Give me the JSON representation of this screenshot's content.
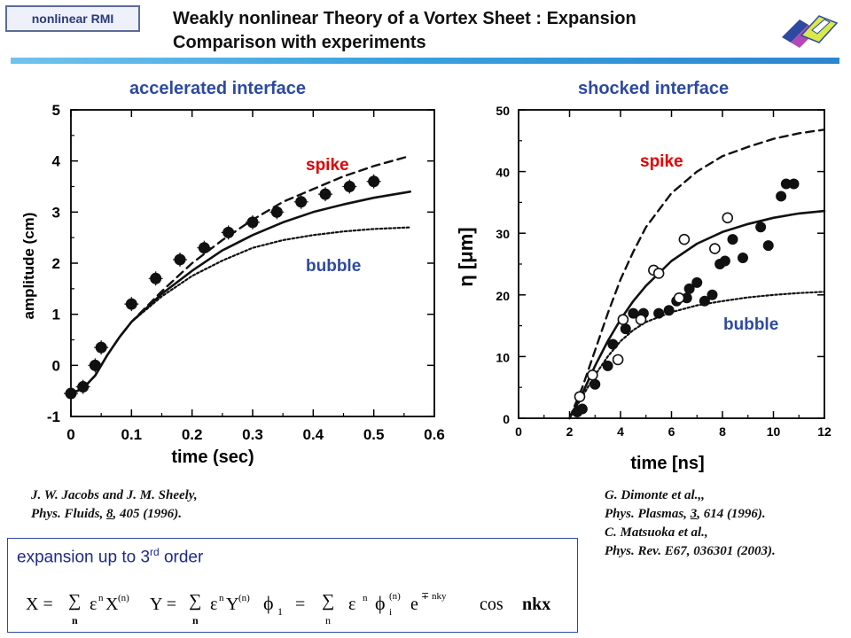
{
  "header": {
    "tag": "nonlinear RMI",
    "title_line1": "Weakly nonlinear Theory of a Vortex Sheet : Expansion",
    "title_line2": "Comparison with experiments"
  },
  "colors": {
    "accent_blue": "#2d4aa0",
    "red_label": "#e00000",
    "rule_start": "#6fc3ee",
    "rule_end": "#2b86d0"
  },
  "icons": [
    "logo-icon"
  ],
  "left_panel": {
    "title": "accelerated interface",
    "ref_line1": "J. W. Jacobs and J. M. Sheely,",
    "ref_line2_prefix": "Phys. Fluids, ",
    "ref_line2_volume": "8",
    "ref_line2_suffix": ", 405 (1996)."
  },
  "right_panel": {
    "title": "shocked interface",
    "ref_line1": "G. Dimonte et al.,,",
    "ref_line2_prefix": "Phys. Plasmas, ",
    "ref_line2_volume": "3",
    "ref_line2_suffix": ", 614 (1996).",
    "ref_line3": "C. Matsuoka et al.,",
    "ref_line4": "Phys. Rev. E67, 036301 (2003)."
  },
  "expansion": {
    "title": "expansion up to 3",
    "title_sup": "rd",
    "title_suffix": " order"
  },
  "chart_data": [
    {
      "type": "scatter",
      "xlabel": "time (sec)",
      "ylabel": "amplitude (cm)",
      "xlim": [
        0,
        0.6
      ],
      "ylim": [
        -1,
        5
      ],
      "xticks": [
        0,
        0.1,
        0.2,
        0.3,
        0.4,
        0.5,
        0.6
      ],
      "xtick_labels": [
        "0",
        "0.1",
        "0.2",
        "0.3",
        "0.4",
        "0.5",
        "0.6"
      ],
      "yticks": [
        -1,
        0,
        1,
        2,
        3,
        4,
        5
      ],
      "ytick_labels": [
        "-1",
        "0",
        "1",
        "2",
        "3",
        "4",
        "5"
      ],
      "annotations": [
        "spike",
        "bubble"
      ],
      "series": [
        {
          "name": "experiment",
          "marker": "filled-circle",
          "x": [
            0.0,
            0.02,
            0.04,
            0.05,
            0.1,
            0.14,
            0.18,
            0.22,
            0.26,
            0.3,
            0.34,
            0.38,
            0.42,
            0.46,
            0.5
          ],
          "y": [
            -0.55,
            -0.42,
            0.0,
            0.35,
            1.2,
            1.7,
            2.07,
            2.3,
            2.6,
            2.8,
            3.0,
            3.2,
            3.35,
            3.5,
            3.6
          ]
        },
        {
          "style": "dashed",
          "x": [
            0.0,
            0.02,
            0.04,
            0.06,
            0.08,
            0.1,
            0.15,
            0.2,
            0.25,
            0.3,
            0.35,
            0.4,
            0.45,
            0.5,
            0.56
          ],
          "y": [
            -0.55,
            -0.45,
            -0.2,
            0.2,
            0.55,
            0.85,
            1.45,
            2.0,
            2.45,
            2.85,
            3.2,
            3.45,
            3.7,
            3.9,
            4.1
          ]
        },
        {
          "style": "solid",
          "x": [
            0.0,
            0.02,
            0.04,
            0.06,
            0.08,
            0.1,
            0.15,
            0.2,
            0.25,
            0.3,
            0.35,
            0.4,
            0.45,
            0.5,
            0.56
          ],
          "y": [
            -0.55,
            -0.45,
            -0.2,
            0.2,
            0.55,
            0.85,
            1.4,
            1.85,
            2.25,
            2.55,
            2.8,
            3.0,
            3.15,
            3.28,
            3.4
          ]
        },
        {
          "style": "dotted",
          "x": [
            0.0,
            0.02,
            0.04,
            0.06,
            0.08,
            0.1,
            0.15,
            0.2,
            0.25,
            0.3,
            0.35,
            0.4,
            0.45,
            0.5,
            0.56
          ],
          "y": [
            -0.55,
            -0.45,
            -0.2,
            0.2,
            0.55,
            0.85,
            1.35,
            1.75,
            2.05,
            2.3,
            2.45,
            2.55,
            2.62,
            2.67,
            2.7
          ]
        }
      ]
    },
    {
      "type": "scatter",
      "xlabel": "time [ns]",
      "ylabel": "η [μm]",
      "xlim": [
        0,
        12
      ],
      "ylim": [
        0,
        50
      ],
      "xticks": [
        0,
        2,
        4,
        6,
        8,
        10,
        12
      ],
      "xtick_labels": [
        "0",
        "2",
        "4",
        "6",
        "8",
        "10",
        "12"
      ],
      "yticks": [
        0,
        10,
        20,
        30,
        40,
        50
      ],
      "ytick_labels": [
        "0",
        "10",
        "20",
        "30",
        "40",
        "50"
      ],
      "annotations": [
        "spike",
        "bubble"
      ],
      "series": [
        {
          "name": "filled",
          "marker": "filled-circle",
          "x": [
            2.3,
            2.5,
            3.0,
            3.5,
            3.7,
            4.2,
            4.5,
            4.9,
            5.5,
            5.9,
            6.2,
            6.6,
            6.7,
            7.0,
            7.3,
            7.6,
            7.9,
            8.1,
            8.4,
            8.8,
            9.5,
            9.8,
            10.3,
            10.5,
            10.8
          ],
          "y": [
            1,
            1.5,
            5.5,
            8.5,
            12,
            14.5,
            17,
            17,
            17,
            17.5,
            19,
            19.5,
            21,
            22,
            19,
            20,
            25,
            25.5,
            29,
            26,
            31,
            28,
            36,
            38,
            38
          ]
        },
        {
          "name": "open",
          "marker": "open-circle",
          "x": [
            2.4,
            2.9,
            3.9,
            4.1,
            4.8,
            5.3,
            5.5,
            6.3,
            6.5,
            7.7,
            8.2
          ],
          "y": [
            3.5,
            7,
            9.5,
            16,
            16,
            24,
            23.5,
            19.5,
            29,
            27.5,
            32.5
          ]
        },
        {
          "style": "dashed",
          "x": [
            2.0,
            2.5,
            3.0,
            3.5,
            4.0,
            4.5,
            5.0,
            6.0,
            7.0,
            8.0,
            9.0,
            10.0,
            11.0,
            12.0
          ],
          "y": [
            0,
            5,
            11,
            17,
            22.5,
            27,
            31,
            36.5,
            40,
            42.5,
            44,
            45.3,
            46.2,
            46.8
          ]
        },
        {
          "style": "solid",
          "x": [
            2.0,
            2.5,
            3.0,
            3.5,
            4.0,
            4.5,
            5.0,
            6.0,
            7.0,
            8.0,
            9.0,
            10.0,
            11.0,
            12.0
          ],
          "y": [
            0,
            4,
            8.5,
            12.5,
            16,
            19,
            21.5,
            25.5,
            28.3,
            30.2,
            31.5,
            32.5,
            33.2,
            33.6
          ]
        },
        {
          "style": "dotted",
          "x": [
            2.0,
            2.5,
            3.0,
            3.5,
            4.0,
            4.5,
            5.0,
            6.0,
            7.0,
            8.0,
            9.0,
            10.0,
            11.0,
            12.0
          ],
          "y": [
            0,
            3.5,
            7,
            10,
            12.5,
            14.3,
            15.6,
            17.2,
            18.3,
            19.0,
            19.6,
            20.0,
            20.3,
            20.5
          ]
        }
      ]
    }
  ]
}
